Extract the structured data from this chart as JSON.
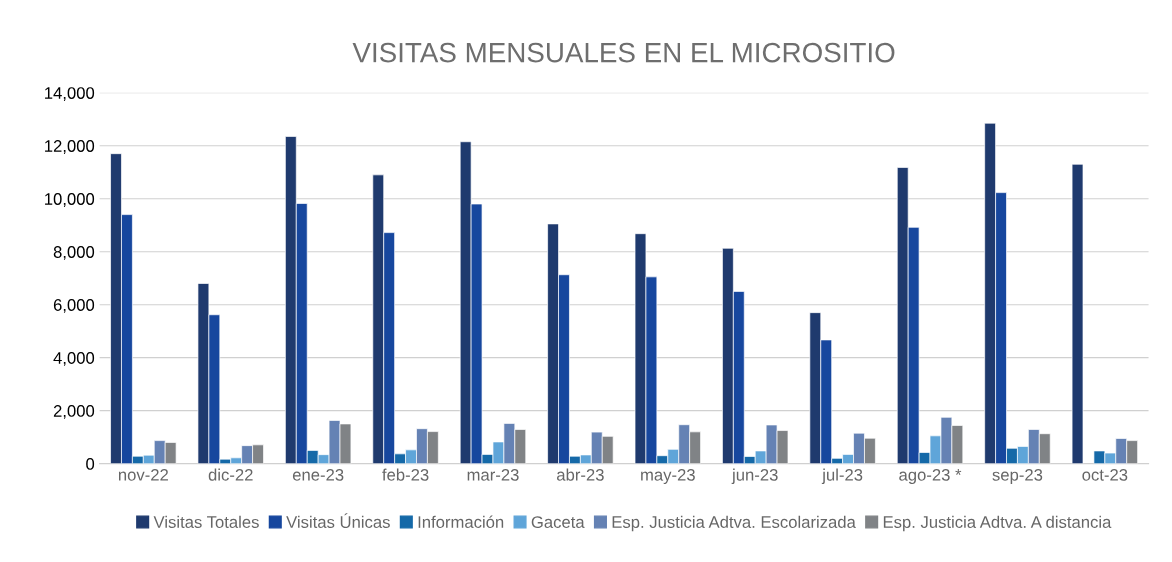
{
  "chart_data": {
    "type": "bar",
    "title": "VISITAS MENSUALES EN EL MICROSITIO",
    "categories": [
      "nov-22",
      "dic-22",
      "ene-23",
      "feb-23",
      "mar-23",
      "abr-23",
      "may-23",
      "jun-23",
      "jul-23",
      "ago-23 *",
      "sep-23",
      "oct-23"
    ],
    "series": [
      {
        "name": "Visitas Totales",
        "color": "#1f3a6e",
        "values": [
          11700,
          6800,
          12350,
          10900,
          12150,
          9050,
          8680,
          8130,
          5700,
          11180,
          12850,
          11300
        ]
      },
      {
        "name": "Visitas Únicas",
        "color": "#17479e",
        "values": [
          9400,
          5620,
          9820,
          8720,
          9800,
          7130,
          7050,
          6500,
          4670,
          8920,
          10230,
          null
        ]
      },
      {
        "name": "Información",
        "color": "#1569a8",
        "values": [
          280,
          170,
          500,
          370,
          350,
          280,
          300,
          270,
          200,
          420,
          580,
          480
        ]
      },
      {
        "name": "Gaceta",
        "color": "#5fa5d9",
        "values": [
          320,
          220,
          340,
          520,
          820,
          330,
          540,
          480,
          350,
          1050,
          650,
          400
        ]
      },
      {
        "name": "Esp. Justicia Adtva. Escolarizada",
        "color": "#6582b4",
        "values": [
          870,
          680,
          1630,
          1320,
          1520,
          1190,
          1470,
          1460,
          1150,
          1750,
          1290,
          950
        ]
      },
      {
        "name": "Esp. Justicia Adtva. A distancia",
        "color": "#808386",
        "values": [
          800,
          710,
          1500,
          1210,
          1290,
          1030,
          1200,
          1250,
          960,
          1440,
          1130,
          870
        ]
      }
    ],
    "ylim": [
      0,
      14000
    ],
    "yticks": [
      {
        "value": 0,
        "label": "0"
      },
      {
        "value": 2000,
        "label": "2,000"
      },
      {
        "value": 4000,
        "label": "4,000"
      },
      {
        "value": 6000,
        "label": "6,000"
      },
      {
        "value": 8000,
        "label": "8,000"
      },
      {
        "value": 10000,
        "label": "10,000"
      },
      {
        "value": 12000,
        "label": "12,000"
      },
      {
        "value": 14000,
        "label": "14,000"
      }
    ],
    "grid": "y",
    "legend": "bottom"
  }
}
